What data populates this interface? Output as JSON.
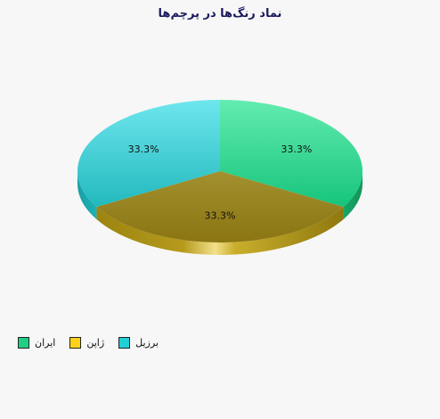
{
  "chart_data": {
    "type": "pie",
    "title": "نماد رنگ‌ها در پرچم‌ها",
    "categories": [
      "ایران",
      "ژاپن",
      "برزیل"
    ],
    "values": [
      1,
      1,
      1
    ],
    "percent_labels": [
      "33.3%",
      "33.3%",
      "33.3%"
    ],
    "colors": [
      "#1fcf85",
      "#ffd21a",
      "#21cfd6"
    ],
    "legend_position": "bottom-left"
  }
}
